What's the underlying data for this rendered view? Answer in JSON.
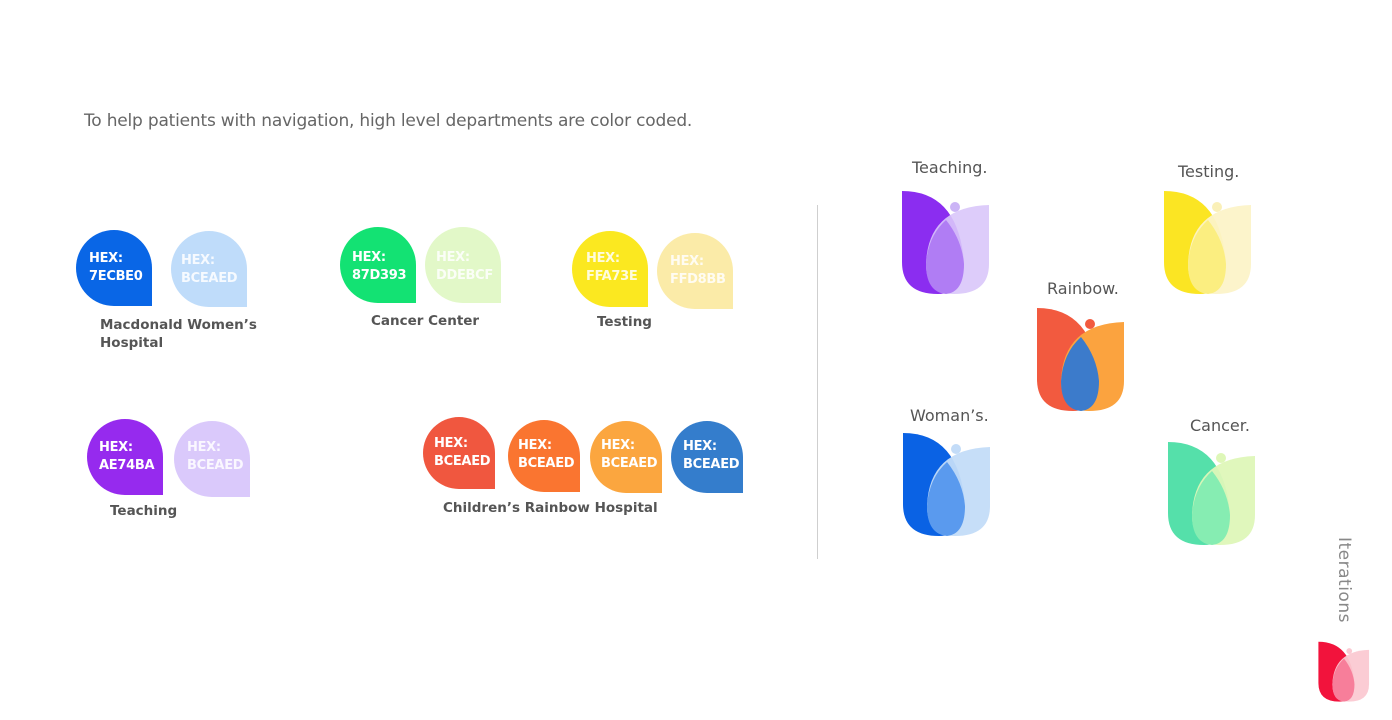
{
  "intro": "To help patients with navigation, high level departments are color coded.",
  "groups": {
    "macdonald": {
      "label_line1": "Macdonald Women’s",
      "label_line2": "Hospital",
      "swatches": [
        {
          "line1": "HEX:",
          "line2": "7ECBE0",
          "color": "#0966E6"
        },
        {
          "line1": "HEX:",
          "line2": "BCEAED",
          "color": "#BFDCFA"
        }
      ]
    },
    "cancer": {
      "label": "Cancer Center",
      "swatches": [
        {
          "line1": "HEX:",
          "line2": "87D393",
          "color": "#13E273"
        },
        {
          "line1": "HEX:",
          "line2": "DDEBCF",
          "color": "#E2F8C8"
        }
      ]
    },
    "testing": {
      "label": "Testing",
      "swatches": [
        {
          "line1": "HEX:",
          "line2": "FFA73E",
          "color": "#FBE820"
        },
        {
          "line1": "HEX:",
          "line2": "FFD8BB",
          "color": "#FBEBA8"
        }
      ]
    },
    "teaching": {
      "label": "Teaching",
      "swatches": [
        {
          "line1": "HEX:",
          "line2": "AE74BA",
          "color": "#962AEE"
        },
        {
          "line1": "HEX:",
          "line2": "BCEAED",
          "color": "#DAC9FB"
        }
      ]
    },
    "rainbow": {
      "label": "Children’s Rainbow Hospital",
      "swatches": [
        {
          "line1": "HEX:",
          "line2": "BCEAED",
          "color": "#F0573F"
        },
        {
          "line1": "HEX:",
          "line2": "BCEAED",
          "color": "#FA7530"
        },
        {
          "line1": "HEX:",
          "line2": "BCEAED",
          "color": "#FBA63F"
        },
        {
          "line1": "HEX:",
          "line2": "BCEAED",
          "color": "#347DCC"
        }
      ]
    }
  },
  "iterations": {
    "teaching": "Teaching.",
    "testing": "Testing.",
    "rainbow": "Rainbow.",
    "womans": "Woman’s.",
    "cancer": "Cancer."
  },
  "side_label": "Iterations",
  "colors": {
    "teaching_left": "#8B2DF0",
    "teaching_right": "#D9C6FA",
    "teaching_mid": "#B07DF4",
    "teaching_dot": "#CBB4F6",
    "testing_left": "#FBE523",
    "testing_right": "#FCF3C8",
    "testing_mid": "#FBEE80",
    "testing_dot": "#FAF0B8",
    "rainbow_left": "#F25A3F",
    "rainbow_right": "#FBA33F",
    "rainbow_mid": "#3C7BCB",
    "rainbow_dot": "#F25A3F",
    "womans_left": "#0A62E4",
    "womans_right": "#C3DCF8",
    "womans_mid": "#5A9AEE",
    "womans_dot": "#C3DCF8",
    "cancer_left": "#55E0AA",
    "cancer_right": "#DEF7B8",
    "cancer_mid": "#86EDB2",
    "cancer_dot": "#DEF7B8",
    "brand_left": "#F2133C",
    "brand_right": "#FBC9D2",
    "brand_mid": "#F77E9A"
  }
}
